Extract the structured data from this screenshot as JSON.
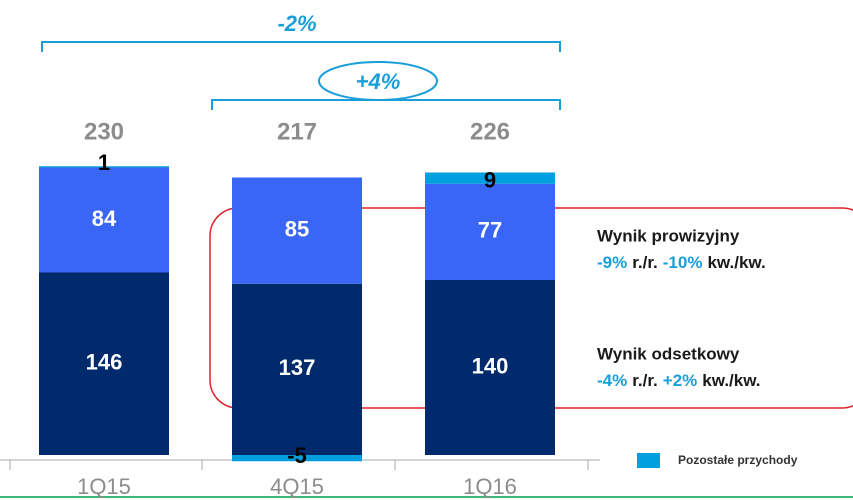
{
  "chart_data": {
    "type": "stacked_bar",
    "categories": [
      "1Q15",
      "4Q15",
      "1Q16"
    ],
    "series": [
      {
        "name": "Wynik odsetkowy",
        "color": "#002a6c",
        "values": [
          146,
          137,
          140
        ]
      },
      {
        "name": "Wynik prowizyjny",
        "color": "#3a66f5",
        "values": [
          84,
          85,
          77
        ]
      },
      {
        "name": "Pozostałe przychody",
        "color": "#00a0e0",
        "values": [
          1,
          -5,
          9
        ]
      }
    ],
    "totals": [
      230,
      217,
      226
    ],
    "ylim": [
      -20,
      300
    ],
    "legend": "bottom-right",
    "changes": {
      "total_yoy": "-2%",
      "total_qoq": "+4%"
    },
    "notes": [
      {
        "title": "Wynik prowizyjny",
        "yoy": "-9%",
        "yoy_unit": "r./r.",
        "qoq": "-10%",
        "qoq_unit": "kw./kw."
      },
      {
        "title": "Wynik odsetkowy",
        "yoy": "-4%",
        "yoy_unit": "r./r.",
        "qoq": "+2%",
        "qoq_unit": "kw./kw."
      }
    ]
  }
}
